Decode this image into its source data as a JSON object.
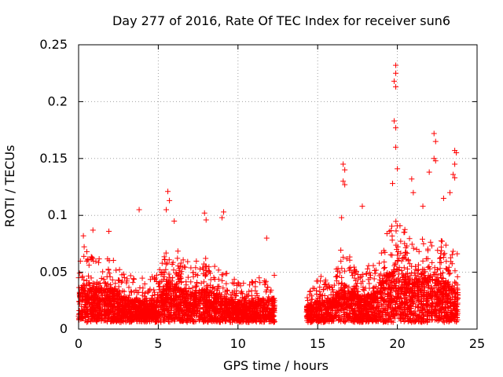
{
  "chart_data": {
    "type": "scatter",
    "title": "Day 277 of 2016, Rate Of TEC Index for receiver sun6",
    "xlabel": "GPS time / hours",
    "ylabel": "ROTI / TECUs",
    "xlim": [
      0,
      25
    ],
    "ylim": [
      0,
      0.25
    ],
    "x_ticks": [
      0,
      5,
      10,
      15,
      20,
      25
    ],
    "y_ticks": [
      0,
      0.05,
      0.1,
      0.15,
      0.2,
      0.25
    ],
    "x_tick_labels": [
      "0",
      "5",
      "10",
      "15",
      "20",
      "25"
    ],
    "y_tick_labels": [
      "0",
      "0.05",
      "0.1",
      "0.15",
      "0.2",
      "0.25"
    ],
    "grid": true,
    "marker": "+",
    "color": "#ff0000",
    "series": [
      {
        "name": "ROTI",
        "segments": [
          {
            "start": 0.0,
            "end": 12.3
          },
          {
            "start": 14.3,
            "end": 23.8
          }
        ],
        "background_level": [
          [
            0.0,
            0.028
          ],
          [
            0.3,
            0.04
          ],
          [
            1.0,
            0.032
          ],
          [
            2.0,
            0.036
          ],
          [
            3.0,
            0.026
          ],
          [
            4.0,
            0.024
          ],
          [
            5.0,
            0.026
          ],
          [
            5.6,
            0.042
          ],
          [
            6.0,
            0.038
          ],
          [
            7.0,
            0.03
          ],
          [
            8.0,
            0.034
          ],
          [
            9.0,
            0.028
          ],
          [
            10.0,
            0.022
          ],
          [
            11.0,
            0.024
          ],
          [
            12.3,
            0.026
          ],
          [
            14.3,
            0.02
          ],
          [
            15.0,
            0.024
          ],
          [
            16.0,
            0.026
          ],
          [
            16.6,
            0.04
          ],
          [
            17.5,
            0.028
          ],
          [
            18.5,
            0.03
          ],
          [
            19.5,
            0.048
          ],
          [
            20.0,
            0.052
          ],
          [
            21.0,
            0.04
          ],
          [
            22.0,
            0.046
          ],
          [
            23.0,
            0.04
          ],
          [
            23.8,
            0.036
          ]
        ],
        "notable_points": [
          {
            "x": 0.3,
            "y": 0.082
          },
          {
            "x": 0.9,
            "y": 0.087
          },
          {
            "x": 1.9,
            "y": 0.086
          },
          {
            "x": 3.8,
            "y": 0.105
          },
          {
            "x": 5.6,
            "y": 0.121
          },
          {
            "x": 5.7,
            "y": 0.113
          },
          {
            "x": 5.5,
            "y": 0.105
          },
          {
            "x": 6.0,
            "y": 0.095
          },
          {
            "x": 7.9,
            "y": 0.102
          },
          {
            "x": 8.0,
            "y": 0.096
          },
          {
            "x": 9.1,
            "y": 0.103
          },
          {
            "x": 9.0,
            "y": 0.098
          },
          {
            "x": 11.8,
            "y": 0.08
          },
          {
            "x": 16.6,
            "y": 0.145
          },
          {
            "x": 16.7,
            "y": 0.14
          },
          {
            "x": 16.6,
            "y": 0.13
          },
          {
            "x": 16.7,
            "y": 0.127
          },
          {
            "x": 16.5,
            "y": 0.098
          },
          {
            "x": 17.8,
            "y": 0.108
          },
          {
            "x": 19.9,
            "y": 0.232
          },
          {
            "x": 19.9,
            "y": 0.225
          },
          {
            "x": 19.8,
            "y": 0.218
          },
          {
            "x": 19.9,
            "y": 0.213
          },
          {
            "x": 19.8,
            "y": 0.183
          },
          {
            "x": 19.9,
            "y": 0.177
          },
          {
            "x": 19.9,
            "y": 0.16
          },
          {
            "x": 20.0,
            "y": 0.141
          },
          {
            "x": 19.7,
            "y": 0.128
          },
          {
            "x": 20.9,
            "y": 0.132
          },
          {
            "x": 21.0,
            "y": 0.12
          },
          {
            "x": 22.3,
            "y": 0.172
          },
          {
            "x": 22.4,
            "y": 0.165
          },
          {
            "x": 22.3,
            "y": 0.15
          },
          {
            "x": 22.4,
            "y": 0.148
          },
          {
            "x": 22.0,
            "y": 0.138
          },
          {
            "x": 23.6,
            "y": 0.157
          },
          {
            "x": 23.7,
            "y": 0.155
          },
          {
            "x": 23.6,
            "y": 0.145
          },
          {
            "x": 23.5,
            "y": 0.136
          },
          {
            "x": 23.6,
            "y": 0.133
          },
          {
            "x": 23.3,
            "y": 0.12
          },
          {
            "x": 22.9,
            "y": 0.115
          },
          {
            "x": 21.6,
            "y": 0.108
          }
        ]
      }
    ]
  }
}
